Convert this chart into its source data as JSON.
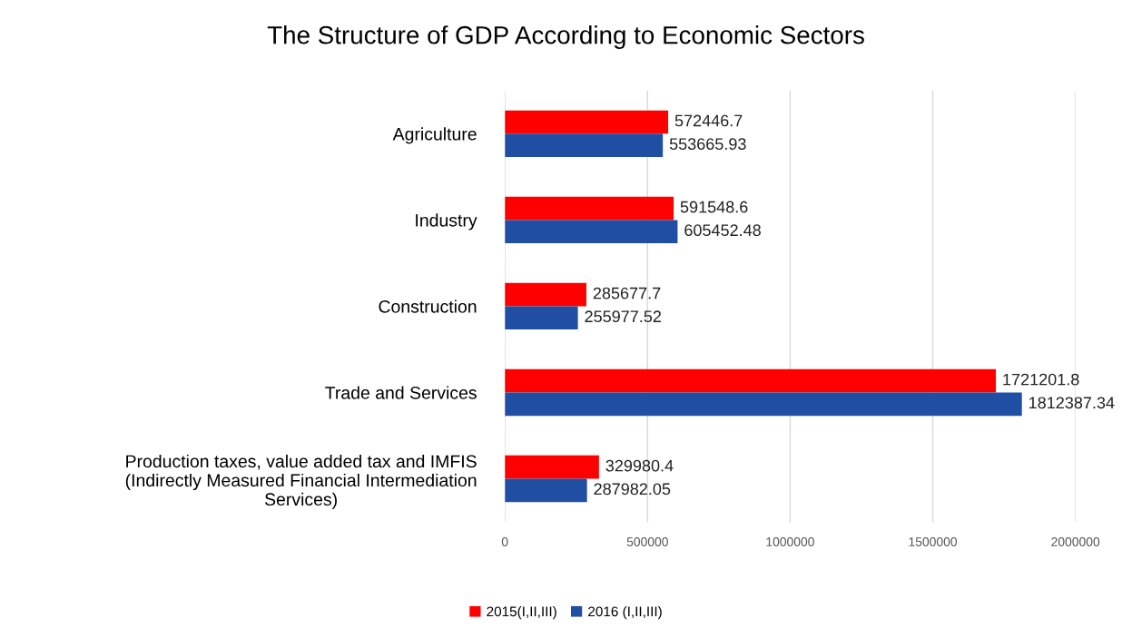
{
  "chart_data": {
    "type": "bar",
    "orientation": "horizontal",
    "title": "The Structure of GDP According to Economic Sectors",
    "categories": [
      "Agriculture",
      "Industry",
      "Construction",
      "Trade and Services",
      "Production taxes, value added tax and IMFIS\n(Indirectly Measured Financial Intermediation\nServices)"
    ],
    "series": [
      {
        "name": "2015(I,II,III)",
        "color": "#ff0000",
        "values": [
          572446.7,
          591548.6,
          285677.7,
          1721201.8,
          329980.4
        ]
      },
      {
        "name": "2016 (I,II,III)",
        "color": "#1f4ea3",
        "values": [
          553665.93,
          605452.48,
          255977.52,
          1812387.34,
          287982.05
        ]
      }
    ],
    "xlim": [
      0,
      2000000
    ],
    "xticks": [
      0,
      500000,
      1000000,
      1500000,
      2000000
    ],
    "grid": "x",
    "legend": "bottom",
    "data_labels": true
  }
}
